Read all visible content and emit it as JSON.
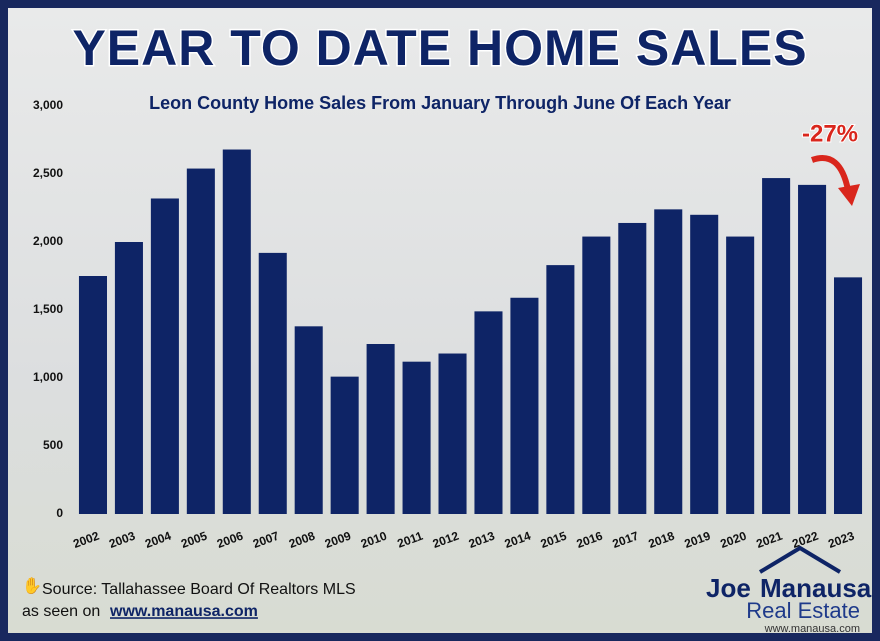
{
  "chart_data": {
    "type": "bar",
    "title": "YEAR TO DATE HOME SALES",
    "subtitle": "Leon County Home Sales From January Through June Of Each Year",
    "annotation": "-27%",
    "categories": [
      "2002",
      "2003",
      "2004",
      "2005",
      "2006",
      "2007",
      "2008",
      "2009",
      "2010",
      "2011",
      "2012",
      "2013",
      "2014",
      "2015",
      "2016",
      "2017",
      "2018",
      "2019",
      "2020",
      "2021",
      "2022",
      "2023"
    ],
    "values": [
      1750,
      2000,
      2320,
      2540,
      2680,
      1920,
      1380,
      1010,
      1250,
      1120,
      1180,
      1490,
      1590,
      1830,
      2040,
      2140,
      2240,
      2200,
      2040,
      2470,
      2420,
      1740
    ],
    "color": "#0e2466",
    "ylim": [
      0,
      3000
    ],
    "yticks": [
      0,
      500,
      {
        "value": 1000,
        "label": "1,000"
      },
      {
        "value": 1500,
        "label": "1,500"
      },
      {
        "value": 2000,
        "label": "2,000"
      },
      {
        "value": 2500,
        "label": "2,500"
      },
      {
        "value": 3000,
        "label": "3,000"
      }
    ],
    "grid": false
  },
  "footer": {
    "source": "Source: Tallahassee Board Of Realtors MLS",
    "seen_on": "as seen on",
    "url": "www.manausa.com"
  },
  "logo": {
    "first": "Joe",
    "last": "Manausa",
    "line2": "Real Estate",
    "url": "www.manausa.com"
  }
}
